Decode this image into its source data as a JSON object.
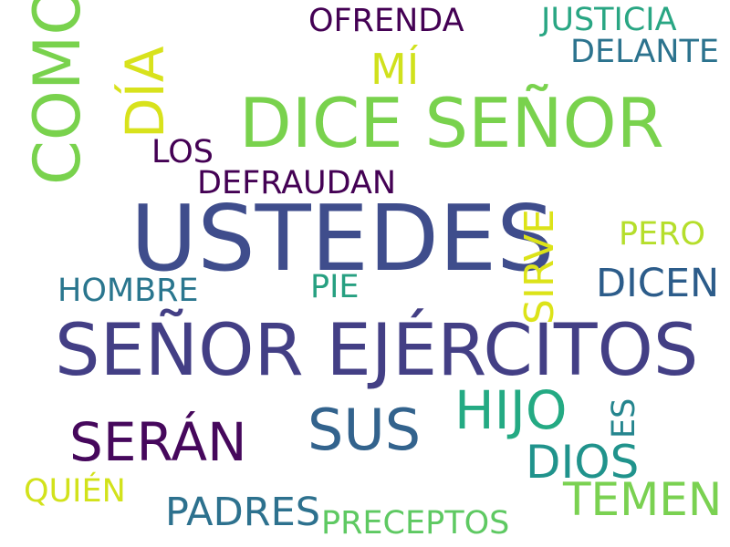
{
  "words": [
    {
      "text": "USTEDES",
      "color": "#3f4d8c"
    },
    {
      "text": "SEÑOR EJÉRCITOS",
      "color": "#433f85"
    },
    {
      "text": "DICE SEÑOR",
      "color": "#79d24d"
    },
    {
      "text": "COMO",
      "color": "#79d24d"
    },
    {
      "text": "DÍA",
      "color": "#d8e21c"
    },
    {
      "text": "MÍ",
      "color": "#d0e11c"
    },
    {
      "text": "OFRENDA",
      "color": "#440154"
    },
    {
      "text": "JUSTICIA",
      "color": "#29a683"
    },
    {
      "text": "DELANTE",
      "color": "#2c738e"
    },
    {
      "text": "LOS",
      "color": "#440154"
    },
    {
      "text": "DEFRAUDAN",
      "color": "#440154"
    },
    {
      "text": "SIRVE",
      "color": "#dce319"
    },
    {
      "text": "PERO",
      "color": "#b5de2b"
    },
    {
      "text": "DICEN",
      "color": "#2c5c8a"
    },
    {
      "text": "HOMBRE",
      "color": "#2a768e"
    },
    {
      "text": "PIE",
      "color": "#27a081"
    },
    {
      "text": "HIJO",
      "color": "#24aa83"
    },
    {
      "text": "ES",
      "color": "#25858e"
    },
    {
      "text": "SERÁN",
      "color": "#46085c"
    },
    {
      "text": "SUS",
      "color": "#33638d"
    },
    {
      "text": "DIOS",
      "color": "#20938c"
    },
    {
      "text": "QUIÉN",
      "color": "#d2e21b"
    },
    {
      "text": "PADRES",
      "color": "#2d718e"
    },
    {
      "text": "PRECEPTOS",
      "color": "#5ec962"
    },
    {
      "text": "TEMEN",
      "color": "#7ad151"
    }
  ]
}
